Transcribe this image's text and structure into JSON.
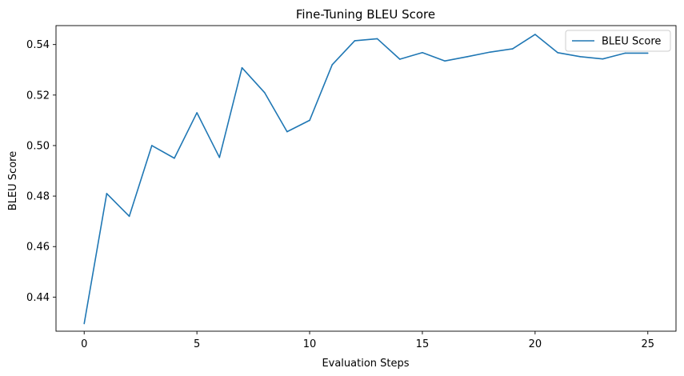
{
  "chart_data": {
    "type": "line",
    "title": "Fine-Tuning BLEU Score",
    "xlabel": "Evaluation Steps",
    "ylabel": "BLEU Score",
    "xlim": [
      -1.25,
      26.25
    ],
    "ylim": [
      0.4265,
      0.5475
    ],
    "xticks": [
      0,
      5,
      10,
      15,
      20,
      25
    ],
    "xtick_labels": [
      "0",
      "5",
      "10",
      "15",
      "20",
      "25"
    ],
    "yticks": [
      0.44,
      0.46,
      0.48,
      0.5,
      0.52,
      0.54
    ],
    "ytick_labels": [
      "0.44",
      "0.46",
      "0.48",
      "0.50",
      "0.52",
      "0.54"
    ],
    "grid": false,
    "legend_position": "upper right",
    "colors": {
      "series": "#1f77b4"
    },
    "series": [
      {
        "name": "BLEU Score",
        "x": [
          0,
          1,
          2,
          3,
          4,
          5,
          6,
          7,
          8,
          9,
          10,
          11,
          12,
          13,
          14,
          15,
          16,
          17,
          18,
          19,
          20,
          21,
          22,
          23,
          24,
          25
        ],
        "values": [
          0.4295,
          0.481,
          0.472,
          0.5,
          0.495,
          0.513,
          0.4953,
          0.5308,
          0.521,
          0.5055,
          0.51,
          0.532,
          0.5415,
          0.5423,
          0.5342,
          0.5368,
          0.5335,
          0.5352,
          0.537,
          0.5383,
          0.544,
          0.5368,
          0.5352,
          0.5343,
          0.5366,
          0.5366
        ]
      }
    ]
  }
}
